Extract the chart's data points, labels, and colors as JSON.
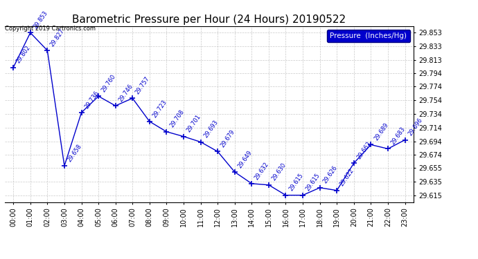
{
  "title": "Barometric Pressure per Hour (24 Hours) 20190522",
  "hours": [
    0,
    1,
    2,
    3,
    4,
    5,
    6,
    7,
    8,
    9,
    10,
    11,
    12,
    13,
    14,
    15,
    16,
    17,
    18,
    19,
    20,
    21,
    22,
    23
  ],
  "hour_labels": [
    "00:00",
    "01:00",
    "02:00",
    "03:00",
    "04:00",
    "05:00",
    "06:00",
    "07:00",
    "08:00",
    "09:00",
    "10:00",
    "11:00",
    "12:00",
    "13:00",
    "14:00",
    "15:00",
    "16:00",
    "17:00",
    "18:00",
    "19:00",
    "20:00",
    "21:00",
    "22:00",
    "23:00"
  ],
  "values": [
    29.802,
    29.853,
    29.827,
    29.658,
    29.736,
    29.76,
    29.746,
    29.757,
    29.723,
    29.708,
    29.701,
    29.693,
    29.679,
    29.649,
    29.632,
    29.63,
    29.615,
    29.615,
    29.626,
    29.622,
    29.662,
    29.689,
    29.683,
    29.696
  ],
  "line_color": "#0000cc",
  "marker_color": "#0000cc",
  "legend_label": "Pressure  (Inches/Hg)",
  "legend_bg": "#0000cc",
  "legend_text_color": "#ffffff",
  "copyright_text": "Copyright 2019 Cartronics.com",
  "yticks": [
    29.615,
    29.635,
    29.655,
    29.674,
    29.694,
    29.714,
    29.734,
    29.754,
    29.774,
    29.794,
    29.813,
    29.833,
    29.853
  ],
  "ylim": [
    29.605,
    29.863
  ],
  "background_color": "#ffffff",
  "grid_color": "#bbbbbb",
  "title_fontsize": 11,
  "tick_fontsize": 7,
  "annot_fontsize": 6,
  "copyright_fontsize": 6,
  "legend_fontsize": 7.5
}
